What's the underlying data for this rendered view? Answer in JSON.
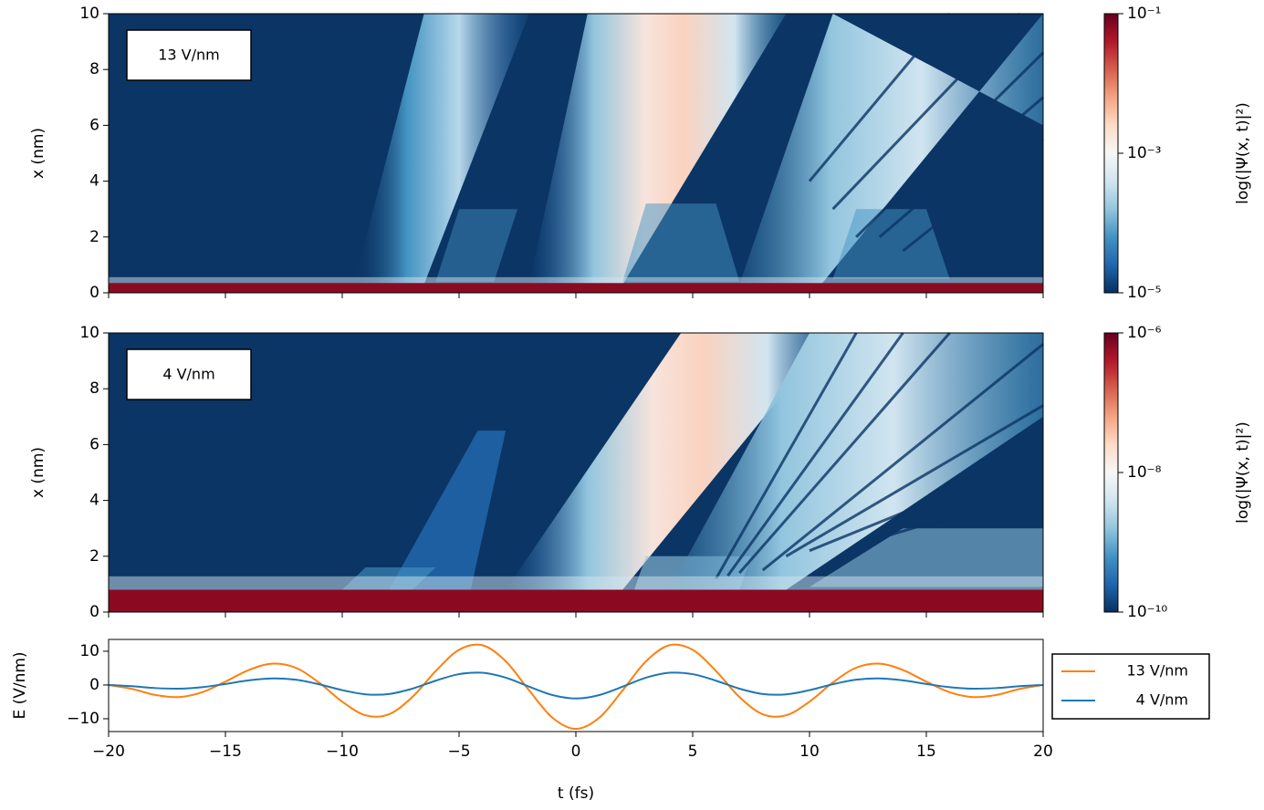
{
  "chart_data": [
    {
      "type": "heatmap",
      "annotation": "13 V/nm",
      "ylabel": "x (nm)",
      "xlim": [
        -20,
        20
      ],
      "xticks": [
        -20,
        -15,
        -10,
        -5,
        0,
        5,
        10,
        15,
        20
      ],
      "ylim": [
        0,
        10
      ],
      "yticks": [
        0,
        2,
        4,
        6,
        8,
        10
      ],
      "colorbar": {
        "label": "log(|Ψ(x, t)|²)",
        "scale": "log",
        "colormap": "RdBu_r",
        "lim": [
          1e-05,
          0.1
        ],
        "ticks": [
          {
            "value": 0.1,
            "label": "10⁻¹"
          },
          {
            "value": 0.001,
            "label": "10⁻³"
          },
          {
            "value": 1e-05,
            "label": "10⁻⁵"
          }
        ]
      }
    },
    {
      "type": "heatmap",
      "annotation": "4 V/nm",
      "ylabel": "x (nm)",
      "xlim": [
        -20,
        20
      ],
      "xticks": [
        -20,
        -15,
        -10,
        -5,
        0,
        5,
        10,
        15,
        20
      ],
      "ylim": [
        0,
        10
      ],
      "yticks": [
        0,
        2,
        4,
        6,
        8,
        10
      ],
      "colorbar": {
        "label": "log(|Ψ(x, t)|²)",
        "scale": "log",
        "colormap": "RdBu_r",
        "lim": [
          1e-10,
          1e-06
        ],
        "ticks": [
          {
            "value": 1e-06,
            "label": "10⁻⁶"
          },
          {
            "value": 1e-08,
            "label": "10⁻⁸"
          },
          {
            "value": 1e-10,
            "label": "10⁻¹⁰"
          }
        ]
      }
    },
    {
      "type": "line",
      "xlabel": "t (fs)",
      "ylabel": "E (V/nm)",
      "xlim": [
        -20,
        20
      ],
      "xticks": [
        {
          "value": -20,
          "label": "−20"
        },
        {
          "value": -15,
          "label": "−15"
        },
        {
          "value": -10,
          "label": "−10"
        },
        {
          "value": -5,
          "label": "−5"
        },
        0,
        5,
        10,
        15,
        20
      ],
      "ylim": [
        -13.8,
        13.5
      ],
      "yticks": [
        {
          "value": -10,
          "label": "−10"
        },
        0,
        10
      ],
      "legend": "outside right",
      "x": [
        -20,
        -19,
        -18,
        -17,
        -16,
        -15,
        -14,
        -13,
        -12,
        -11,
        -10,
        -9,
        -8,
        -7,
        -6,
        -5,
        -4,
        -3,
        -2,
        -1,
        0,
        1,
        2,
        3,
        4,
        5,
        6,
        7,
        8,
        9,
        10,
        11,
        12,
        13,
        14,
        15,
        16,
        17,
        18,
        19,
        20
      ],
      "series": [
        {
          "name": "13 V/nm",
          "color": "#ff7f0e",
          "values": [
            0,
            -1.16,
            -2.96,
            -3.58,
            -2.16,
            0.99,
            4.43,
            6.31,
            5.12,
            0.74,
            -4.95,
            -8.99,
            -8.68,
            -3.56,
            4.12,
            10.42,
            11.77,
            7.02,
            -1.61,
            -9.71,
            -13.0,
            -9.71,
            -1.61,
            7.02,
            11.77,
            10.42,
            4.12,
            -3.56,
            -8.68,
            -8.99,
            -4.95,
            0.74,
            5.12,
            6.31,
            4.43,
            0.99,
            -2.16,
            -3.58,
            -2.96,
            -1.16,
            0
          ]
        },
        {
          "name": "4 V/nm",
          "color": "#1f77b4",
          "values": [
            0,
            -0.36,
            -0.91,
            -1.1,
            -0.66,
            0.3,
            1.36,
            1.94,
            1.58,
            0.23,
            -1.52,
            -2.77,
            -2.67,
            -1.1,
            1.27,
            3.21,
            3.62,
            2.16,
            -0.5,
            -2.99,
            -4.0,
            -2.99,
            -0.5,
            2.16,
            3.62,
            3.21,
            1.27,
            -1.1,
            -2.67,
            -2.77,
            -1.52,
            0.23,
            1.58,
            1.94,
            1.36,
            0.3,
            -0.66,
            -1.1,
            -0.91,
            -0.36,
            0
          ]
        }
      ]
    }
  ]
}
